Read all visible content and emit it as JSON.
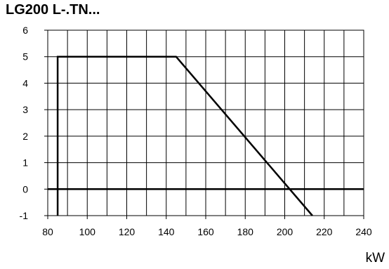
{
  "chart_data": {
    "type": "line",
    "title": "LG200 L-.TN...",
    "xlabel": "kW",
    "ylabel": "",
    "xlim": [
      80,
      240
    ],
    "ylim": [
      -1,
      6
    ],
    "x_ticks": [
      80,
      100,
      120,
      140,
      160,
      180,
      200,
      220,
      240
    ],
    "y_ticks": [
      -1,
      0,
      1,
      2,
      3,
      4,
      5,
      6
    ],
    "x_minor_step": 10,
    "grid": true,
    "legend": "none",
    "series": [
      {
        "color": "#000000",
        "points": [
          [
            85,
            -1
          ],
          [
            85,
            5
          ],
          [
            145,
            5
          ],
          [
            214,
            -1
          ]
        ]
      },
      {
        "color": "#000000",
        "points": [
          [
            80,
            0
          ],
          [
            240,
            0
          ]
        ]
      }
    ]
  }
}
